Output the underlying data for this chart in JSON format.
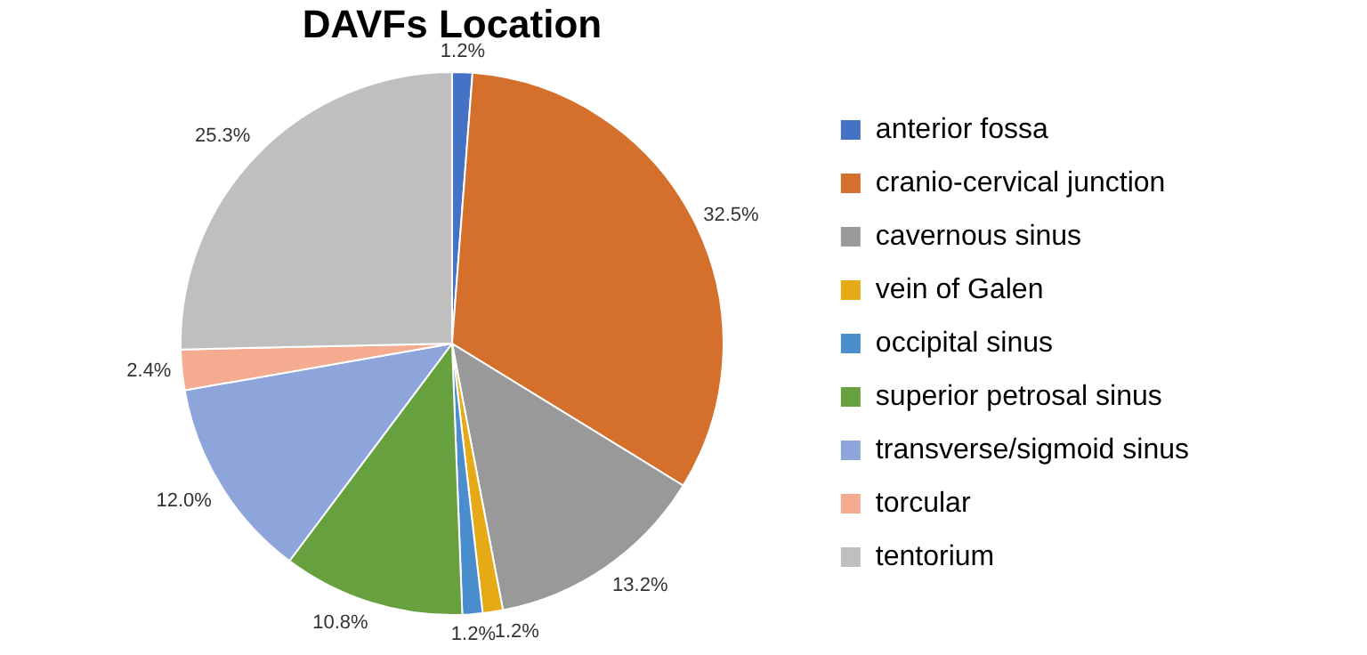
{
  "chart_data": {
    "type": "pie",
    "title": "DAVFs Location",
    "categories": [
      "anterior fossa",
      "cranio-cervical junction",
      "cavernous sinus",
      "vein of Galen",
      "occipital sinus",
      "superior petrosal sinus",
      "transverse/sigmoid sinus",
      "torcular",
      "tentorium"
    ],
    "values": [
      1.2,
      32.5,
      13.2,
      1.2,
      1.2,
      10.8,
      12.0,
      2.4,
      25.3
    ],
    "value_labels": [
      "1.2%",
      "32.5%",
      "13.2%",
      "1.2%",
      "1.2%",
      "10.8%",
      "12.0%",
      "2.4%",
      "25.3%"
    ],
    "colors": [
      "#4472c4",
      "#d4702c",
      "#999999",
      "#e6aa17",
      "#4a8dcc",
      "#67a03e",
      "#8ea5dc",
      "#f4ab8f",
      "#bfbfbf"
    ],
    "legend": "right"
  }
}
